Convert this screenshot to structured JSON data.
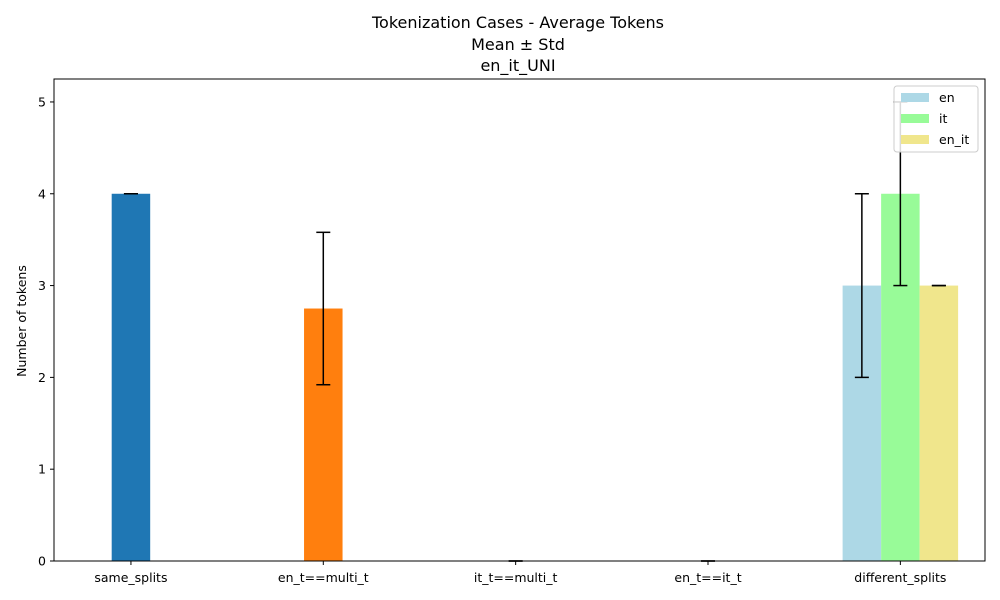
{
  "chart_data": {
    "type": "bar",
    "title": [
      "Tokenization Cases - Average Tokens",
      "Mean ± Std",
      "en_it_UNI"
    ],
    "xlabel": "",
    "ylabel": "Number of tokens",
    "ylim": [
      0,
      5.25
    ],
    "yticks": [
      "0",
      "1",
      "2",
      "3",
      "4",
      "5"
    ],
    "categories": [
      "same_splits",
      "en_t==multi_t",
      "it_t==multi_t",
      "en_t==it_t",
      "different_splits"
    ],
    "grid": false,
    "legend_position": "top-right",
    "single_bars": [
      {
        "category": "same_splits",
        "mean": 4.0,
        "std": 0.0,
        "color": "#1f77b4"
      },
      {
        "category": "en_t==multi_t",
        "mean": 2.75,
        "std": 0.83,
        "color": "#ff7f0e"
      },
      {
        "category": "it_t==multi_t",
        "mean": 0.0,
        "std": 0.0,
        "color": "#2ca02c"
      },
      {
        "category": "en_t==it_t",
        "mean": 0.0,
        "std": 0.0,
        "color": "#d62728"
      }
    ],
    "series": [
      {
        "name": "en",
        "category": "different_splits",
        "mean": 3.0,
        "std": 1.0,
        "color": "#add8e6"
      },
      {
        "name": "it",
        "category": "different_splits",
        "mean": 4.0,
        "std": 1.0,
        "color": "#98fb98"
      },
      {
        "name": "en_it",
        "category": "different_splits",
        "mean": 3.0,
        "std": 0.0,
        "color": "#f0e68c"
      }
    ]
  }
}
